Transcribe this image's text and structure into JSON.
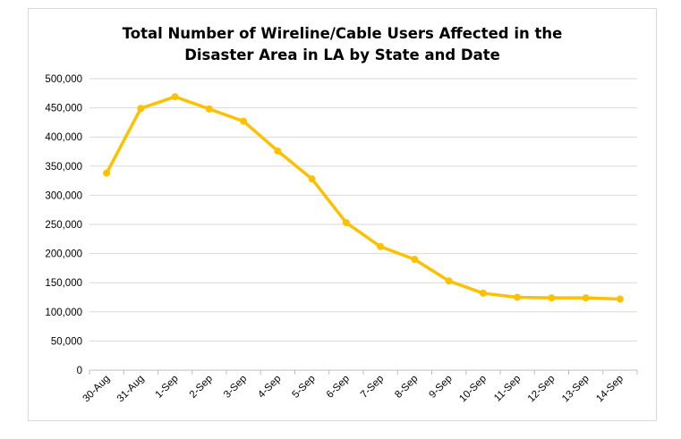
{
  "chart_data": {
    "type": "line",
    "title_lines": [
      "Total Number of Wireline/Cable Users Affected in the",
      "Disaster Area in LA by State and Date"
    ],
    "categories": [
      "30-Aug",
      "31-Aug",
      "1-Sep",
      "2-Sep",
      "3-Sep",
      "4-Sep",
      "5-Sep",
      "6-Sep",
      "7-Sep",
      "8-Sep",
      "9-Sep",
      "10-Sep",
      "11-Sep",
      "12-Sep",
      "13-Sep",
      "14-Sep"
    ],
    "series": [
      {
        "name": "Wireline/Cable Users Affected",
        "color": "#ffc000",
        "values": [
          338000,
          449000,
          469000,
          448000,
          427000,
          376000,
          328000,
          253000,
          212000,
          190000,
          153000,
          132000,
          125000,
          124000,
          124000,
          122000
        ]
      }
    ],
    "y_ticks": [
      "0",
      "50,000",
      "100,000",
      "150,000",
      "200,000",
      "250,000",
      "300,000",
      "350,000",
      "400,000",
      "450,000",
      "500,000"
    ],
    "ylim": [
      0,
      500000
    ],
    "y_step": 50000,
    "xlabel": "",
    "ylabel": "",
    "grid": true,
    "legend": "none"
  }
}
